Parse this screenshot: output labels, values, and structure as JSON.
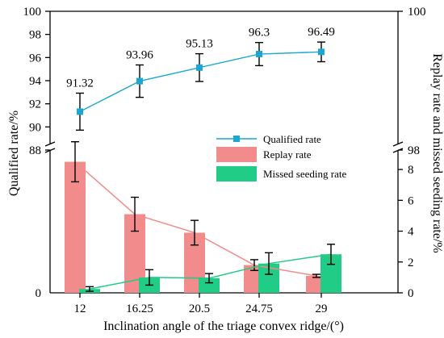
{
  "chart_data": {
    "type": "bar+line",
    "xlabel": "Inclination angle of the triage convex ridge/(°)",
    "categories": [
      "12",
      "16.25",
      "20.5",
      "24.75",
      "29"
    ],
    "upper_panel": {
      "ylabel": "Qualified rate/%",
      "ylim": [
        88,
        100
      ],
      "yticks": [
        "88",
        "90",
        "92",
        "94",
        "96",
        "98",
        "100"
      ],
      "series": [
        {
          "name": "Qualified rate",
          "type": "line",
          "color": "#1ba7d0",
          "values": [
            91.32,
            93.96,
            95.13,
            96.3,
            96.49
          ],
          "labels": [
            "91.32",
            "93.96",
            "95.13",
            "96.3",
            "96.49"
          ],
          "errors": [
            1.6,
            1.4,
            1.2,
            1.0,
            0.85
          ]
        }
      ]
    },
    "lower_panel": {
      "ylabel": "Replay rate and missed seeding rate/%",
      "ylim": [
        0,
        9
      ],
      "yticks": [
        "0",
        "2",
        "4",
        "6",
        "8"
      ],
      "series": [
        {
          "name": "Replay rate",
          "type": "bar+line",
          "color": "#f28b8b",
          "values": [
            8.5,
            5.1,
            3.9,
            1.8,
            1.1
          ],
          "errors": [
            1.3,
            1.1,
            0.8,
            0.35,
            0.1
          ]
        },
        {
          "name": "Missed seeding rate",
          "type": "bar+line",
          "color": "#21cc87",
          "values": [
            0.25,
            1.0,
            0.95,
            1.9,
            2.5
          ],
          "errors": [
            0.15,
            0.5,
            0.3,
            0.7,
            0.65
          ]
        }
      ]
    },
    "right_axis_top": {
      "ticks": [
        "100",
        "98"
      ]
    },
    "legend": {
      "items": [
        "Qualified rate",
        "Replay rate",
        "Missed seeding rate"
      ],
      "position": "middle-right"
    }
  }
}
